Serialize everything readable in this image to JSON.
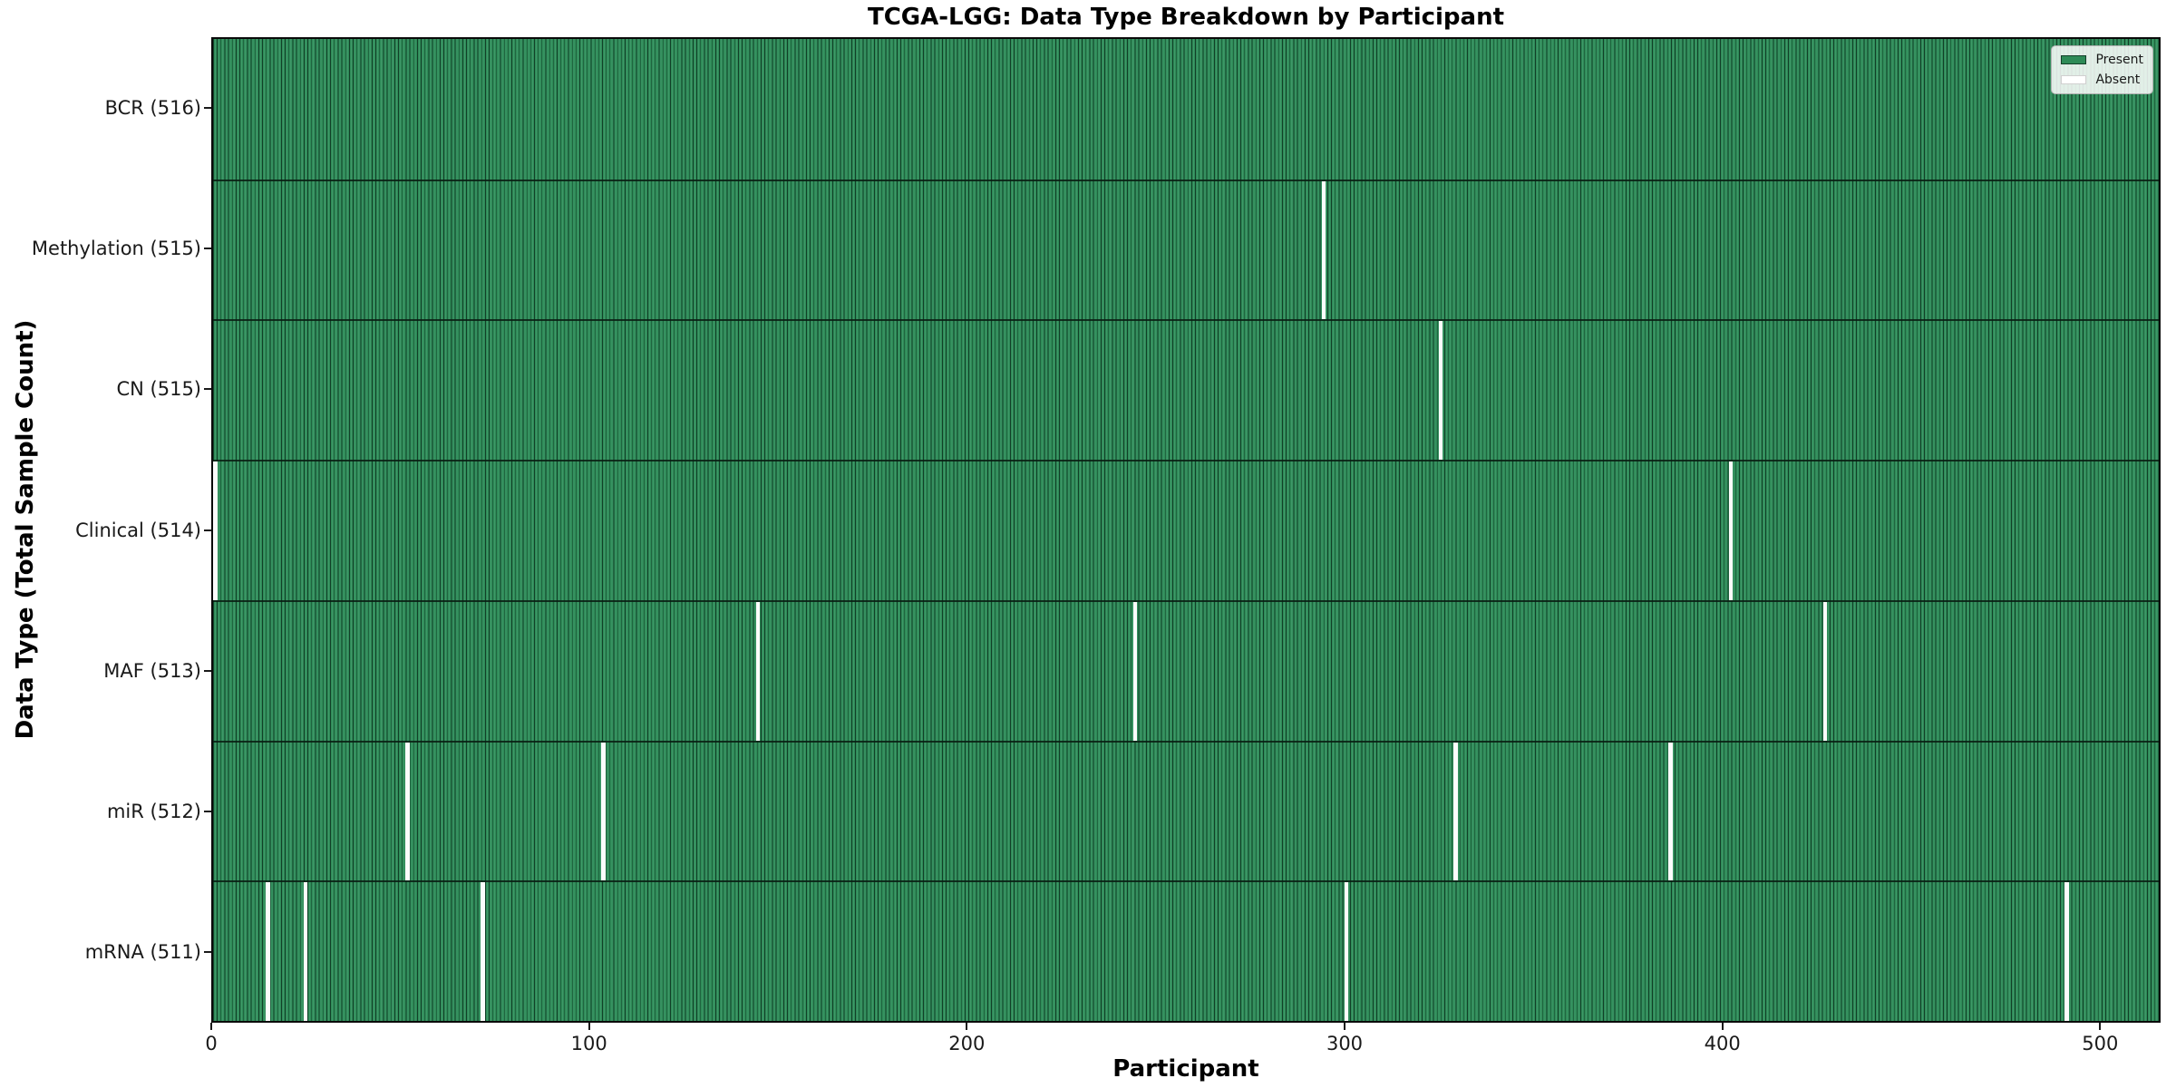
{
  "title": "TCGA-LGG: Data Type Breakdown by Participant",
  "legend": {
    "present_label": "Present",
    "absent_label": "Absent"
  },
  "colors": {
    "present": "#2e8b57",
    "absent": "#ffffff",
    "bar_edge": "#123f28",
    "frame": "#0a0a0a"
  },
  "chart_data": {
    "type": "heatmap",
    "title": "TCGA-LGG: Data Type Breakdown by Participant",
    "xlabel": "Participant",
    "ylabel": "Data Type (Total Sample Count)",
    "xlim": [
      0,
      516
    ],
    "x_ticks": [
      0,
      100,
      200,
      300,
      400,
      500
    ],
    "total_participants": 516,
    "grid": false,
    "legend_position": "upper right",
    "legend_entries": [
      "Present",
      "Absent"
    ],
    "rows": [
      {
        "label": "BCR (516)",
        "data_type": "BCR",
        "present_count": 516,
        "absent_participants": []
      },
      {
        "label": "Methylation (515)",
        "data_type": "Methylation",
        "present_count": 515,
        "absent_participants": [
          294
        ]
      },
      {
        "label": "CN (515)",
        "data_type": "CN",
        "present_count": 515,
        "absent_participants": [
          325
        ]
      },
      {
        "label": "Clinical (514)",
        "data_type": "Clinical",
        "present_count": 514,
        "absent_participants": [
          0,
          402
        ]
      },
      {
        "label": "MAF (513)",
        "data_type": "MAF",
        "present_count": 513,
        "absent_participants": [
          144,
          244,
          427
        ]
      },
      {
        "label": "miR (512)",
        "data_type": "miR",
        "present_count": 512,
        "absent_participants": [
          51,
          103,
          329,
          386
        ]
      },
      {
        "label": "mRNA (511)",
        "data_type": "mRNA",
        "present_count": 511,
        "absent_participants": [
          14,
          24,
          71,
          300,
          491
        ]
      }
    ]
  }
}
